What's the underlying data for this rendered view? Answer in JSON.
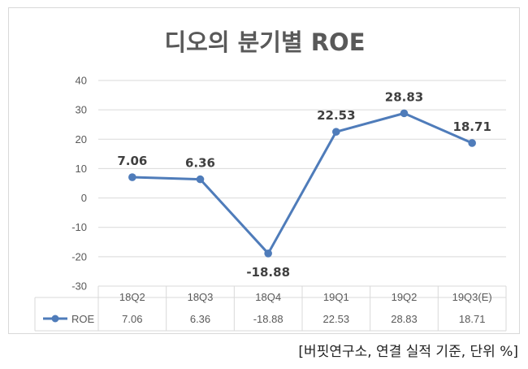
{
  "chart_data": {
    "type": "line",
    "title": "디오의 분기별 ROE",
    "categories": [
      "18Q2",
      "18Q3",
      "18Q4",
      "19Q1",
      "19Q2",
      "19Q3(E)"
    ],
    "series": [
      {
        "name": "ROE",
        "values": [
          7.06,
          6.36,
          -18.88,
          22.53,
          28.83,
          18.71
        ],
        "color": "#4f7cba"
      }
    ],
    "data_labels": [
      "7.06",
      "6.36",
      "-18.88",
      "22.53",
      "28.83",
      "18.71"
    ],
    "table_values": [
      "7.06",
      "6.36",
      "-18.88",
      "22.53",
      "28.83",
      "18.71"
    ],
    "y_ticks": [
      40,
      30,
      20,
      10,
      0,
      -10,
      -20,
      -30
    ],
    "ylim": [
      -30,
      40
    ],
    "grid": true,
    "legend": "data-table"
  },
  "source_note": "[버핏연구소, 연결 실적 기준, 단위 %]"
}
